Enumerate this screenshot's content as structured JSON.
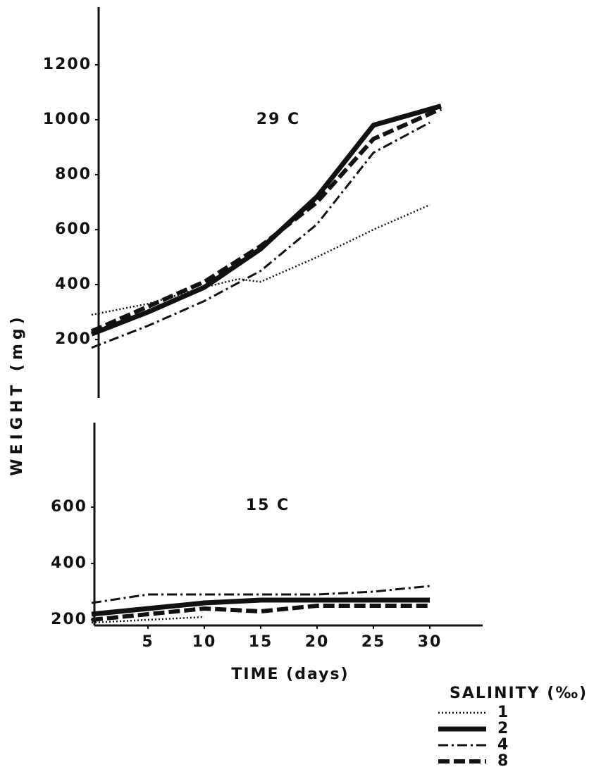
{
  "chart_data": [
    {
      "type": "line",
      "title": "29 C",
      "ylabel": "WEIGHT (mg)",
      "legend_title": "SALINITY (‰)",
      "xlim": [
        0,
        35
      ],
      "ylim": [
        0,
        1400
      ],
      "yticks": [
        200,
        400,
        600,
        800,
        1000,
        1200
      ],
      "series": [
        {
          "name": "1",
          "color": "#111111",
          "style": "dotted",
          "x": [
            0,
            5,
            10,
            13,
            15,
            20,
            25,
            30
          ],
          "values": [
            290,
            330,
            390,
            420,
            410,
            500,
            600,
            690
          ]
        },
        {
          "name": "2",
          "color": "#111111",
          "style": "solid",
          "x": [
            0,
            5,
            10,
            15,
            20,
            25,
            31
          ],
          "values": [
            220,
            300,
            390,
            530,
            720,
            980,
            1050
          ]
        },
        {
          "name": "4",
          "color": "#111111",
          "style": "dashdot",
          "x": [
            0,
            5,
            10,
            15,
            20,
            25,
            30
          ],
          "values": [
            170,
            250,
            340,
            450,
            620,
            880,
            990
          ]
        },
        {
          "name": "8",
          "color": "#111111",
          "style": "dashed",
          "x": [
            0,
            5,
            10,
            15,
            20,
            25,
            31
          ],
          "values": [
            230,
            320,
            410,
            540,
            700,
            930,
            1040
          ]
        }
      ]
    },
    {
      "type": "line",
      "title": "15 C",
      "xlabel": "TIME (days)",
      "xlim": [
        0,
        35
      ],
      "xticks": [
        5,
        10,
        15,
        20,
        25,
        30
      ],
      "ylim": [
        180,
        900
      ],
      "yticks": [
        200,
        400,
        600
      ],
      "series": [
        {
          "color": "#111111",
          "style": "dotted",
          "x": [
            0,
            5,
            10
          ],
          "values": [
            190,
            200,
            210
          ]
        },
        {
          "color": "#111111",
          "style": "solid",
          "x": [
            0,
            5,
            10,
            15,
            20,
            25,
            30
          ],
          "values": [
            220,
            240,
            260,
            270,
            270,
            270,
            270
          ]
        },
        {
          "color": "#111111",
          "style": "dashdot",
          "x": [
            0,
            5,
            10,
            15,
            20,
            25,
            30
          ],
          "values": [
            260,
            290,
            290,
            290,
            290,
            300,
            320
          ]
        },
        {
          "color": "#111111",
          "style": "dashed",
          "x": [
            0,
            5,
            10,
            15,
            20,
            25,
            30
          ],
          "values": [
            200,
            220,
            240,
            230,
            250,
            250,
            250
          ]
        }
      ]
    }
  ]
}
